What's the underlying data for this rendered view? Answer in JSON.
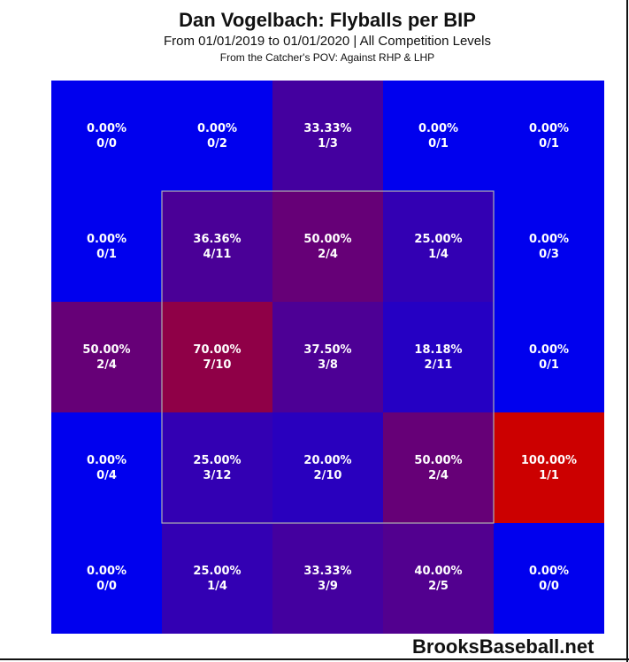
{
  "chart_data": {
    "type": "heatmap",
    "title": "Dan Vogelbach: Flyballs per BIP",
    "subtitle": "From 01/01/2019 to 01/01/2020 | All Competition Levels",
    "note": "From the Catcher's POV:   Against RHP & LHP",
    "rows": 5,
    "cols": 5,
    "cells": [
      [
        {
          "pct": "0.00%",
          "frac": "0/0",
          "value": 0.0
        },
        {
          "pct": "0.00%",
          "frac": "0/2",
          "value": 0.0
        },
        {
          "pct": "33.33%",
          "frac": "1/3",
          "value": 33.33
        },
        {
          "pct": "0.00%",
          "frac": "0/1",
          "value": 0.0
        },
        {
          "pct": "0.00%",
          "frac": "0/1",
          "value": 0.0
        }
      ],
      [
        {
          "pct": "0.00%",
          "frac": "0/1",
          "value": 0.0
        },
        {
          "pct": "36.36%",
          "frac": "4/11",
          "value": 36.36
        },
        {
          "pct": "50.00%",
          "frac": "2/4",
          "value": 50.0
        },
        {
          "pct": "25.00%",
          "frac": "1/4",
          "value": 25.0
        },
        {
          "pct": "0.00%",
          "frac": "0/3",
          "value": 0.0
        }
      ],
      [
        {
          "pct": "50.00%",
          "frac": "2/4",
          "value": 50.0
        },
        {
          "pct": "70.00%",
          "frac": "7/10",
          "value": 70.0
        },
        {
          "pct": "37.50%",
          "frac": "3/8",
          "value": 37.5
        },
        {
          "pct": "18.18%",
          "frac": "2/11",
          "value": 18.18
        },
        {
          "pct": "0.00%",
          "frac": "0/1",
          "value": 0.0
        }
      ],
      [
        {
          "pct": "0.00%",
          "frac": "0/4",
          "value": 0.0
        },
        {
          "pct": "25.00%",
          "frac": "3/12",
          "value": 25.0
        },
        {
          "pct": "20.00%",
          "frac": "2/10",
          "value": 20.0
        },
        {
          "pct": "50.00%",
          "frac": "2/4",
          "value": 50.0
        },
        {
          "pct": "100.00%",
          "frac": "1/1",
          "value": 100.0
        }
      ],
      [
        {
          "pct": "0.00%",
          "frac": "0/0",
          "value": 0.0
        },
        {
          "pct": "25.00%",
          "frac": "1/4",
          "value": 25.0
        },
        {
          "pct": "33.33%",
          "frac": "3/9",
          "value": 33.33
        },
        {
          "pct": "40.00%",
          "frac": "2/5",
          "value": 40.0
        },
        {
          "pct": "0.00%",
          "frac": "0/0",
          "value": 0.0
        }
      ]
    ],
    "strike_zone": {
      "row_start": 1,
      "row_end": 3,
      "col_start": 1,
      "col_end": 3
    },
    "color_scale": {
      "low": "#0000ee",
      "high": "#cc0000"
    }
  },
  "watermark": "BrooksBaseball.net"
}
